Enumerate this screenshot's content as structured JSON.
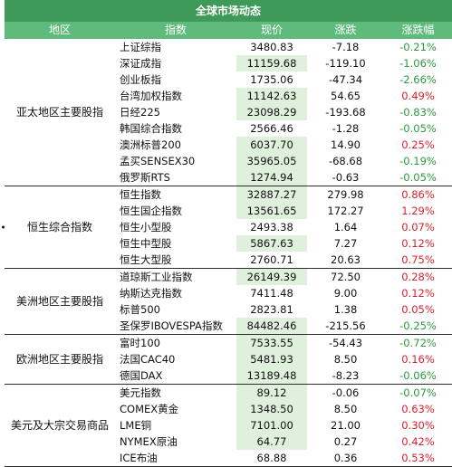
{
  "title": "全球市场动态",
  "columns": [
    "地区",
    "指数",
    "现价",
    "涨跌",
    "涨跌幅"
  ],
  "groups": [
    {
      "region": [
        "亚太地区",
        "主要股指"
      ],
      "rows": [
        {
          "name": "上证综指",
          "price": "3480.83",
          "change": "-7.18",
          "pct": "-0.21%",
          "dir": "down"
        },
        {
          "name": "深证成指",
          "price": "11159.68",
          "change": "-119.10",
          "pct": "-1.06%",
          "dir": "down"
        },
        {
          "name": "创业板指",
          "price": "1735.06",
          "change": "-47.34",
          "pct": "-2.66%",
          "dir": "down"
        },
        {
          "name": "台湾加权指数",
          "price": "11142.63",
          "change": "54.65",
          "pct": "0.49%",
          "dir": "up"
        },
        {
          "name": "日经225",
          "price": "23098.29",
          "change": "-193.68",
          "pct": "-0.83%",
          "dir": "down"
        },
        {
          "name": "韩国综合指数",
          "price": "2566.46",
          "change": "-1.28",
          "pct": "-0.05%",
          "dir": "down"
        },
        {
          "name": "澳洲标普200",
          "price": "6037.70",
          "change": "14.90",
          "pct": "0.25%",
          "dir": "up"
        },
        {
          "name": "孟买SENSEX30",
          "price": "35965.05",
          "change": "-68.68",
          "pct": "-0.19%",
          "dir": "down"
        },
        {
          "name": "俄罗斯RTS",
          "price": "1274.94",
          "change": "-0.63",
          "pct": "-0.05%",
          "dir": "down"
        }
      ]
    },
    {
      "region": [
        "恒生综合指数"
      ],
      "bullet": true,
      "rows": [
        {
          "name": "恒生指数",
          "price": "32887.27",
          "change": "279.98",
          "pct": "0.86%",
          "dir": "up"
        },
        {
          "name": "恒生国企指数",
          "price": "13561.65",
          "change": "172.27",
          "pct": "1.29%",
          "dir": "up"
        },
        {
          "name": "恒生小型股",
          "price": "2493.38",
          "change": "1.64",
          "pct": "0.07%",
          "dir": "up"
        },
        {
          "name": "恒生中型股",
          "price": "5867.63",
          "change": "7.27",
          "pct": "0.12%",
          "dir": "up"
        },
        {
          "name": "恒生大型股",
          "price": "2760.71",
          "change": "20.63",
          "pct": "0.75%",
          "dir": "up"
        }
      ]
    },
    {
      "region": [
        "美洲地区",
        "主要股指"
      ],
      "rows": [
        {
          "name": "道琼斯工业指数",
          "price": "26149.39",
          "change": "72.50",
          "pct": "0.28%",
          "dir": "up"
        },
        {
          "name": "纳斯达克指数",
          "price": "7411.48",
          "change": "9.00",
          "pct": "0.12%",
          "dir": "up"
        },
        {
          "name": "标普500",
          "price": "2823.81",
          "change": "1.38",
          "pct": "0.05%",
          "dir": "up"
        },
        {
          "name": "圣保罗IBOVESPA指数",
          "price": "84482.46",
          "change": "-215.56",
          "pct": "-0.25%",
          "dir": "down"
        }
      ]
    },
    {
      "region": [
        "欧洲地区",
        "主要股指"
      ],
      "rows": [
        {
          "name": "富时100",
          "price": "7533.55",
          "change": "-54.43",
          "pct": "-0.72%",
          "dir": "down"
        },
        {
          "name": "法国CAC40",
          "price": "5481.93",
          "change": "8.50",
          "pct": "0.16%",
          "dir": "up"
        },
        {
          "name": "德国DAX",
          "price": "13189.48",
          "change": "-8.23",
          "pct": "-0.06%",
          "dir": "down"
        }
      ]
    },
    {
      "region": [
        "美元及大宗",
        "交易商品"
      ],
      "rows": [
        {
          "name": "美元指数",
          "price": "89.12",
          "change": "-0.06",
          "pct": "-0.07%",
          "dir": "down"
        },
        {
          "name": "COMEX黄金",
          "price": "1348.50",
          "change": "8.50",
          "pct": "0.63%",
          "dir": "up"
        },
        {
          "name": "LME铜",
          "price": "7101.00",
          "change": "21.00",
          "pct": "0.30%",
          "dir": "up"
        },
        {
          "name": "NYMEX原油",
          "price": "64.77",
          "change": "0.27",
          "pct": "0.42%",
          "dir": "up"
        },
        {
          "name": "ICE布油",
          "price": "68.88",
          "change": "0.36",
          "pct": "0.53%",
          "dir": "up"
        }
      ]
    }
  ],
  "colors": {
    "title_bg": "#3f9a5a",
    "header_bg": "#5fbb7c",
    "up": "#d8202a",
    "down": "#2b9a3e",
    "price_highlight": "#dff0dc"
  }
}
